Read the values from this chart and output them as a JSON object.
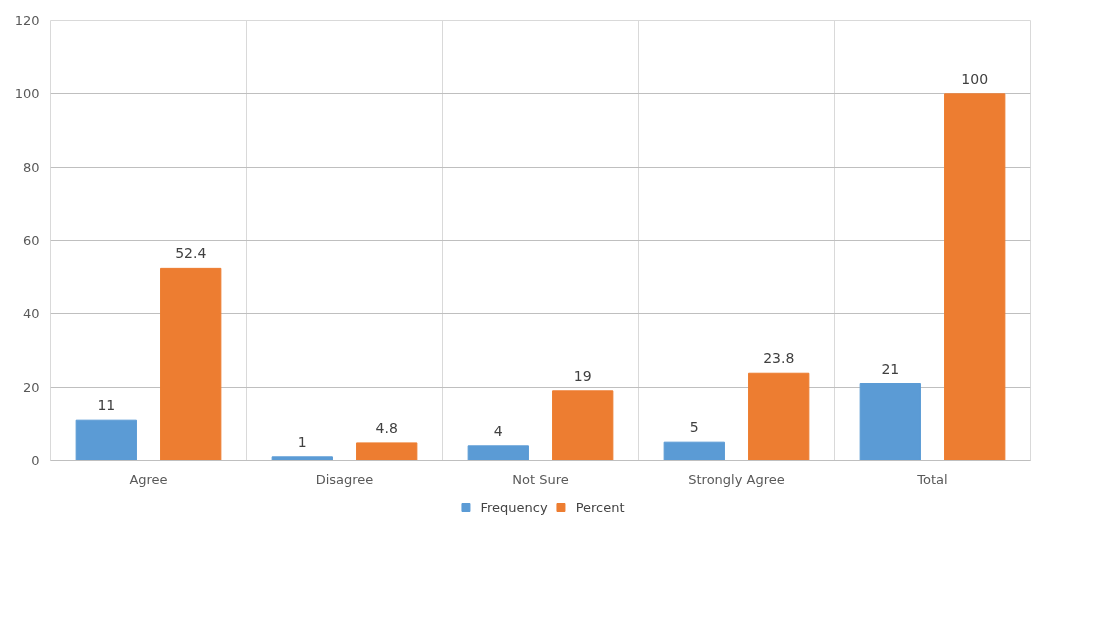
{
  "chart_data": {
    "type": "bar",
    "categories": [
      "Agree",
      "Disagree",
      "Not Sure",
      "Strongly Agree",
      "Total"
    ],
    "series": [
      {
        "name": "Frequency",
        "color": "#5b9bd5",
        "values": [
          11,
          1,
          4,
          5,
          21
        ]
      },
      {
        "name": "Percent",
        "color": "#ed7d31",
        "values": [
          52.4,
          4.8,
          19,
          23.8,
          100
        ]
      }
    ],
    "ylim": [
      0,
      120
    ],
    "yticks": [
      0,
      20,
      40,
      60,
      80,
      100,
      120
    ],
    "grid": true,
    "legend": "bottom",
    "data_labels": true
  }
}
